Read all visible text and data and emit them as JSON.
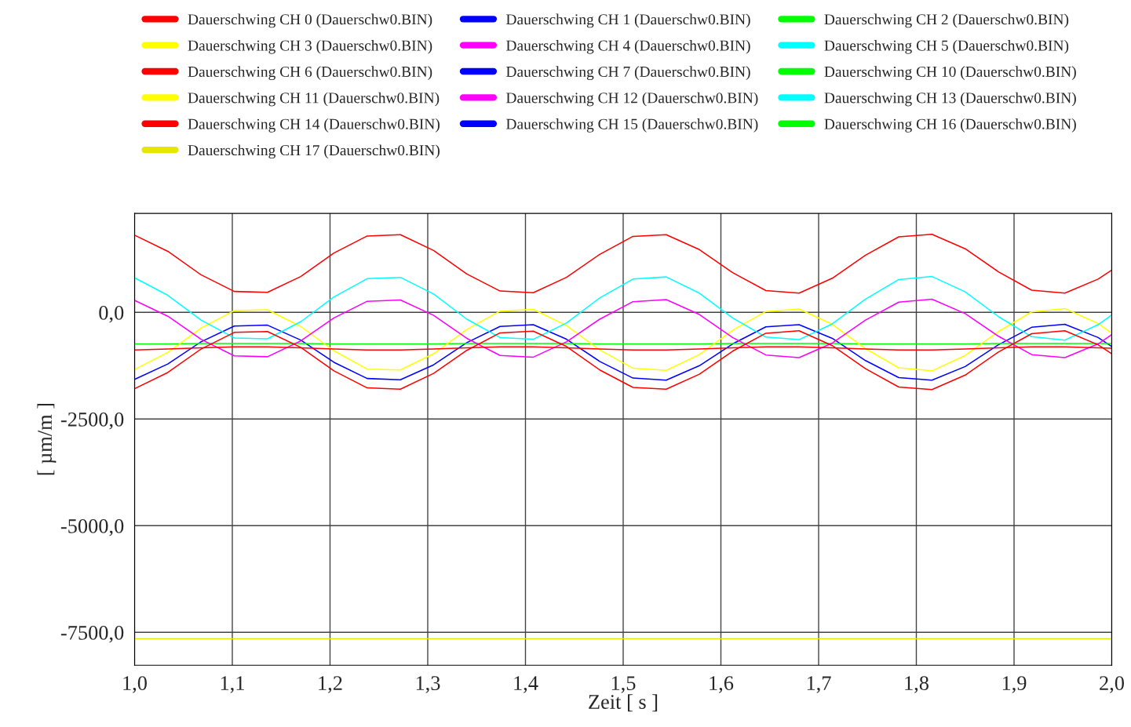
{
  "chart_data": {
    "type": "line",
    "xlabel": "Zeit [ s ]",
    "ylabel": "[ µm/m ]",
    "x": [
      1.0,
      1.034,
      1.068,
      1.102,
      1.136,
      1.17,
      1.204,
      1.238,
      1.272,
      1.306,
      1.34,
      1.374,
      1.408,
      1.442,
      1.476,
      1.51,
      1.544,
      1.578,
      1.612,
      1.646,
      1.68,
      1.714,
      1.748,
      1.782,
      1.816,
      1.85,
      1.884,
      1.918,
      1.952,
      1.986,
      2.0
    ],
    "series": [
      {
        "name": "Dauerschwing CH 0 (Dauerschw0.BIN)",
        "color": "#ff0000",
        "values": [
          1810,
          1430,
          880,
          490,
          470,
          840,
          1390,
          1790,
          1820,
          1450,
          900,
          500,
          460,
          820,
          1360,
          1780,
          1820,
          1470,
          930,
          510,
          450,
          800,
          1340,
          1770,
          1830,
          1490,
          950,
          520,
          450,
          780,
          990
        ]
      },
      {
        "name": "Dauerschwing CH 1 (Dauerschw0.BIN)",
        "color": "#0000ff",
        "values": [
          -1570,
          -1210,
          -690,
          -320,
          -300,
          -650,
          -1170,
          -1550,
          -1580,
          -1230,
          -710,
          -330,
          -290,
          -630,
          -1150,
          -1540,
          -1590,
          -1250,
          -740,
          -340,
          -290,
          -610,
          -1130,
          -1530,
          -1590,
          -1270,
          -760,
          -350,
          -280,
          -590,
          -800
        ]
      },
      {
        "name": "Dauerschwing CH 2 (Dauerschw0.BIN)",
        "color": "#00ff00",
        "values": [
          -740,
          -740,
          -730,
          -730,
          -730,
          -730,
          -740,
          -740,
          -740,
          -740,
          -730,
          -730,
          -730,
          -730,
          -740,
          -740,
          -740,
          -740,
          -730,
          -730,
          -730,
          -730,
          -740,
          -740,
          -740,
          -740,
          -730,
          -730,
          -730,
          -730,
          -730
        ]
      },
      {
        "name": "Dauerschwing CH 3 (Dauerschw0.BIN)",
        "color": "#ffff00",
        "values": [
          -1340,
          -940,
          -370,
          40,
          60,
          -330,
          -900,
          -1330,
          -1350,
          -970,
          -400,
          30,
          70,
          -310,
          -880,
          -1310,
          -1360,
          -990,
          -420,
          20,
          80,
          -280,
          -850,
          -1300,
          -1370,
          -1010,
          -450,
          10,
          90,
          -260,
          -490
        ]
      },
      {
        "name": "Dauerschwing CH 4 (Dauerschw0.BIN)",
        "color": "#ff00ff",
        "values": [
          280,
          -90,
          -630,
          -1020,
          -1040,
          -670,
          -130,
          260,
          290,
          -70,
          -610,
          -1010,
          -1050,
          -690,
          -160,
          250,
          300,
          -50,
          -590,
          -1000,
          -1060,
          -720,
          -180,
          240,
          310,
          -30,
          -560,
          -990,
          -1060,
          -740,
          -520
        ]
      },
      {
        "name": "Dauerschwing CH 5 (Dauerschw0.BIN)",
        "color": "#00ffff",
        "values": [
          810,
          400,
          -180,
          -600,
          -620,
          -220,
          360,
          790,
          820,
          430,
          -160,
          -590,
          -630,
          -250,
          340,
          780,
          830,
          450,
          -130,
          -580,
          -640,
          -270,
          310,
          770,
          840,
          480,
          -100,
          -570,
          -650,
          -290,
          -60
        ]
      },
      {
        "name": "Dauerschwing CH 6 (Dauerschw0.BIN)",
        "color": "#ff0000",
        "values": [
          -1790,
          -1410,
          -860,
          -470,
          -450,
          -820,
          -1370,
          -1770,
          -1800,
          -1430,
          -890,
          -480,
          -440,
          -800,
          -1350,
          -1760,
          -1800,
          -1450,
          -910,
          -490,
          -430,
          -780,
          -1320,
          -1750,
          -1810,
          -1470,
          -930,
          -500,
          -430,
          -760,
          -970
        ]
      },
      {
        "name": "Dauerschwing CH 7 (Dauerschw0.BIN)",
        "color": "#0000ff",
        "values": [
          null,
          null,
          null,
          null,
          null,
          null,
          null,
          null,
          null,
          null,
          null,
          null,
          null,
          null,
          null,
          null,
          null,
          null,
          null,
          null,
          null,
          null,
          null,
          null,
          null,
          null,
          null,
          null,
          null,
          null,
          null
        ]
      },
      {
        "name": "Dauerschwing CH 10 (Dauerschw0.BIN)",
        "color": "#00ff00",
        "values": [
          null,
          null,
          null,
          null,
          null,
          null,
          null,
          null,
          null,
          null,
          null,
          null,
          null,
          null,
          null,
          null,
          null,
          null,
          null,
          null,
          null,
          null,
          null,
          null,
          null,
          null,
          null,
          null,
          null,
          null,
          null
        ]
      },
      {
        "name": "Dauerschwing CH 11 (Dauerschw0.BIN)",
        "color": "#ffff00",
        "values": [
          null,
          null,
          null,
          null,
          null,
          null,
          null,
          null,
          null,
          null,
          null,
          null,
          null,
          null,
          null,
          null,
          null,
          null,
          null,
          null,
          null,
          null,
          null,
          null,
          null,
          null,
          null,
          null,
          null,
          null,
          null
        ]
      },
      {
        "name": "Dauerschwing CH 12 (Dauerschw0.BIN)",
        "color": "#ff00ff",
        "values": [
          null,
          null,
          null,
          null,
          null,
          null,
          null,
          null,
          null,
          null,
          null,
          null,
          null,
          null,
          null,
          null,
          null,
          null,
          null,
          null,
          null,
          null,
          null,
          null,
          null,
          null,
          null,
          null,
          null,
          null,
          null
        ]
      },
      {
        "name": "Dauerschwing CH 13 (Dauerschw0.BIN)",
        "color": "#00ffff",
        "values": [
          null,
          null,
          null,
          null,
          null,
          null,
          null,
          null,
          null,
          null,
          null,
          null,
          null,
          null,
          null,
          null,
          null,
          null,
          null,
          null,
          null,
          null,
          null,
          null,
          null,
          null,
          null,
          null,
          null,
          null,
          null
        ]
      },
      {
        "name": "Dauerschwing CH 14 (Dauerschw0.BIN)",
        "color": "#ff0000",
        "values": [
          -880,
          -860,
          -830,
          -810,
          -810,
          -830,
          -860,
          -880,
          -880,
          -860,
          -830,
          -810,
          -810,
          -830,
          -860,
          -880,
          -880,
          -860,
          -830,
          -810,
          -810,
          -830,
          -860,
          -880,
          -880,
          -860,
          -830,
          -810,
          -810,
          -830,
          -840
        ]
      },
      {
        "name": "Dauerschwing CH 15 (Dauerschw0.BIN)",
        "color": "#0000ff",
        "values": [
          null,
          null,
          null,
          null,
          null,
          null,
          null,
          null,
          null,
          null,
          null,
          null,
          null,
          null,
          null,
          null,
          null,
          null,
          null,
          null,
          null,
          null,
          null,
          null,
          null,
          null,
          null,
          null,
          null,
          null,
          null
        ]
      },
      {
        "name": "Dauerschwing CH 16 (Dauerschw0.BIN)",
        "color": "#00ff00",
        "values": [
          null,
          null,
          null,
          null,
          null,
          null,
          null,
          null,
          null,
          null,
          null,
          null,
          null,
          null,
          null,
          null,
          null,
          null,
          null,
          null,
          null,
          null,
          null,
          null,
          null,
          null,
          null,
          null,
          null,
          null,
          null
        ]
      },
      {
        "name": "Dauerschwing CH 17 (Dauerschw0.BIN)",
        "color": "#e6e600",
        "x": [
          1.0,
          2.0
        ],
        "values": [
          -7650,
          -7650
        ]
      }
    ],
    "xlim": [
      1.0,
      2.0
    ],
    "ylim": [
      -8270,
      2320
    ],
    "xticks": [
      {
        "value": 1.0,
        "label": "1,0"
      },
      {
        "value": 1.1,
        "label": "1,1"
      },
      {
        "value": 1.2,
        "label": "1,2"
      },
      {
        "value": 1.3,
        "label": "1,3"
      },
      {
        "value": 1.4,
        "label": "1,4"
      },
      {
        "value": 1.5,
        "label": "1,5"
      },
      {
        "value": 1.6,
        "label": "1,6"
      },
      {
        "value": 1.7,
        "label": "1,7"
      },
      {
        "value": 1.8,
        "label": "1,8"
      },
      {
        "value": 1.9,
        "label": "1,9"
      },
      {
        "value": 2.0,
        "label": "2,0"
      }
    ],
    "yticks": [
      {
        "value": -7500,
        "label": "-7500,0"
      },
      {
        "value": -5000,
        "label": "-5000,0"
      },
      {
        "value": -2500,
        "label": "-2500,0"
      },
      {
        "value": 0,
        "label": "0,0"
      }
    ],
    "grid": true,
    "legend": "top"
  }
}
